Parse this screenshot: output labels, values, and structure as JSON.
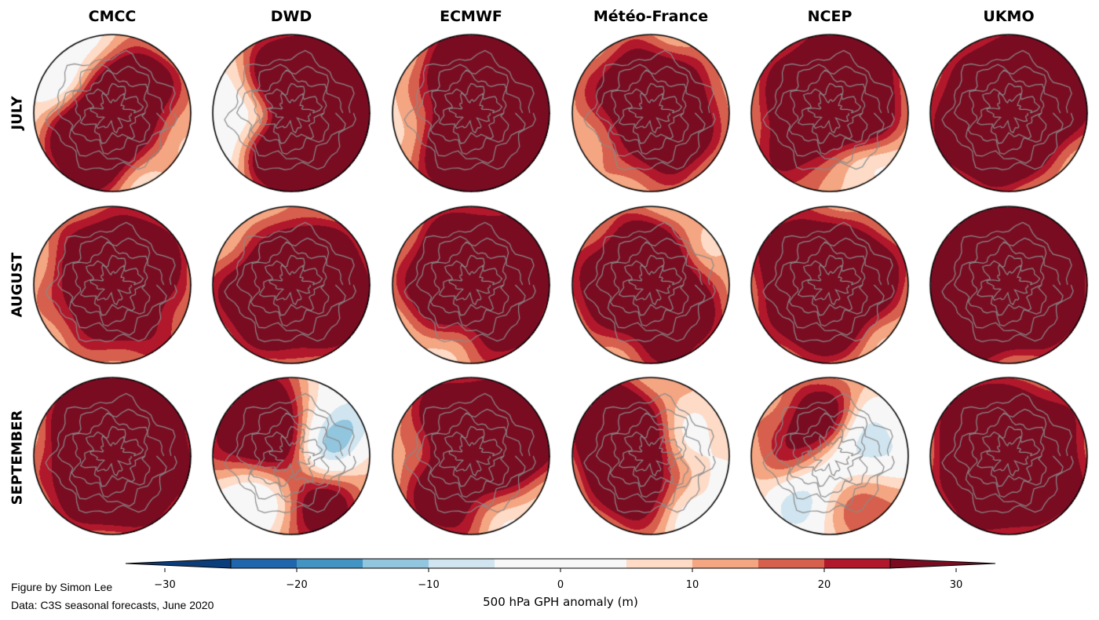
{
  "models": [
    "CMCC",
    "DWD",
    "ECMWF",
    "Météo-France",
    "NCEP",
    "UKMO"
  ],
  "months": [
    "JULY",
    "AUGUST",
    "SEPTEMBER"
  ],
  "colorbar": {
    "label": "500 hPa GPH anomaly (m)",
    "ticks": [
      -30,
      -20,
      -10,
      0,
      10,
      20,
      30
    ],
    "tick_labels": [
      "−30",
      "−20",
      "−10",
      "0",
      "10",
      "20",
      "30"
    ],
    "range": [
      -30,
      30
    ],
    "levels": [
      -25,
      -20,
      -15,
      -10,
      -5,
      5,
      10,
      15,
      20,
      25
    ],
    "colors": [
      "#0b3d7a",
      "#2166ac",
      "#4393c3",
      "#92c5de",
      "#d1e5f0",
      "#f7f7f7",
      "#fddbc7",
      "#f4a582",
      "#d6604d",
      "#b2182b",
      "#7a0c22"
    ],
    "extend": "both"
  },
  "credits": {
    "line1": "Figure by Simon Lee",
    "line2": "Data: C3S seasonal forecasts, June 2020"
  },
  "maps": [
    [
      [
        [
          -12,
          -25,
          10
        ],
        [
          22,
          -45,
          10
        ],
        [
          25,
          0,
          16
        ],
        [
          35,
          120,
          14
        ],
        [
          -8,
          170,
          16
        ],
        [
          -10,
          -130,
          15
        ],
        [
          28,
          150,
          12
        ],
        [
          -5,
          60,
          18
        ],
        [
          20,
          -80,
          12
        ]
      ],
      [
        [
          40,
          -30,
          18
        ],
        [
          35,
          60,
          16
        ],
        [
          -25,
          165,
          18
        ],
        [
          30,
          120,
          12
        ],
        [
          25,
          -110,
          14
        ],
        [
          15,
          0,
          18
        ]
      ],
      [
        [
          30,
          -40,
          20
        ],
        [
          28,
          55,
          18
        ],
        [
          -10,
          170,
          14
        ],
        [
          22,
          120,
          14
        ],
        [
          25,
          -100,
          16
        ],
        [
          20,
          15,
          18
        ]
      ],
      [
        [
          22,
          -35,
          14
        ],
        [
          20,
          -110,
          12
        ],
        [
          -12,
          170,
          14
        ],
        [
          15,
          100,
          16
        ],
        [
          18,
          40,
          12
        ],
        [
          22,
          -175,
          14
        ]
      ],
      [
        [
          38,
          -60,
          14
        ],
        [
          26,
          15,
          12
        ],
        [
          -12,
          60,
          10
        ],
        [
          32,
          -150,
          14
        ],
        [
          18,
          130,
          16
        ],
        [
          16,
          -100,
          16
        ]
      ],
      [
        [
          28,
          -40,
          18
        ],
        [
          25,
          100,
          14
        ],
        [
          25,
          -100,
          14
        ],
        [
          30,
          170,
          16
        ],
        [
          22,
          0,
          18
        ],
        [
          -5,
          45,
          12
        ]
      ]
    ],
    [
      [
        [
          26,
          -45,
          12
        ],
        [
          12,
          60,
          16
        ],
        [
          16,
          -120,
          16
        ],
        [
          20,
          140,
          14
        ],
        [
          -4,
          45,
          12
        ],
        [
          20,
          0,
          18
        ]
      ],
      [
        [
          26,
          -20,
          16
        ],
        [
          28,
          30,
          14
        ],
        [
          28,
          165,
          16
        ],
        [
          -8,
          -150,
          14
        ],
        [
          20,
          -80,
          14
        ],
        [
          12,
          100,
          18
        ]
      ],
      [
        [
          34,
          -30,
          16
        ],
        [
          20,
          60,
          14
        ],
        [
          -12,
          100,
          14
        ],
        [
          22,
          -110,
          14
        ],
        [
          25,
          165,
          14
        ],
        [
          20,
          0,
          18
        ]
      ],
      [
        [
          -6,
          -30,
          14
        ],
        [
          28,
          -100,
          12
        ],
        [
          30,
          170,
          16
        ],
        [
          20,
          0,
          14
        ],
        [
          22,
          60,
          18
        ],
        [
          -4,
          120,
          12
        ]
      ],
      [
        [
          22,
          -30,
          14
        ],
        [
          -5,
          60,
          12
        ],
        [
          22,
          -130,
          14
        ],
        [
          28,
          100,
          14
        ],
        [
          20,
          170,
          16
        ],
        [
          16,
          0,
          18
        ]
      ],
      [
        [
          36,
          -40,
          16
        ],
        [
          34,
          -130,
          16
        ],
        [
          30,
          130,
          14
        ],
        [
          35,
          40,
          14
        ],
        [
          -6,
          100,
          12
        ],
        [
          24,
          175,
          16
        ]
      ]
    ],
    [
      [
        [
          36,
          -50,
          16
        ],
        [
          34,
          25,
          16
        ],
        [
          -15,
          -5,
          14
        ],
        [
          34,
          -120,
          14
        ],
        [
          32,
          150,
          16
        ],
        [
          20,
          90,
          14
        ],
        [
          -10,
          -160,
          14
        ]
      ],
      [
        [
          -28,
          -40,
          16
        ],
        [
          -14,
          0,
          14
        ],
        [
          -25,
          130,
          14
        ],
        [
          34,
          -130,
          16
        ],
        [
          30,
          60,
          16
        ],
        [
          14,
          170,
          16
        ],
        [
          20,
          -80,
          14
        ]
      ],
      [
        [
          34,
          -40,
          18
        ],
        [
          28,
          120,
          16
        ],
        [
          -14,
          60,
          14
        ],
        [
          22,
          -120,
          14
        ],
        [
          20,
          0,
          16
        ],
        [
          -5,
          170,
          12
        ]
      ],
      [
        [
          -15,
          -5,
          14
        ],
        [
          -18,
          60,
          14
        ],
        [
          30,
          70,
          16
        ],
        [
          26,
          -130,
          14
        ],
        [
          24,
          -170,
          14
        ],
        [
          14,
          120,
          14
        ]
      ],
      [
        [
          -22,
          -20,
          14
        ],
        [
          -26,
          120,
          14
        ],
        [
          28,
          -100,
          14
        ],
        [
          20,
          60,
          14
        ],
        [
          15,
          170,
          16
        ],
        [
          -6,
          0,
          16
        ]
      ],
      [
        [
          30,
          -40,
          16
        ],
        [
          30,
          40,
          16
        ],
        [
          28,
          -130,
          14
        ],
        [
          26,
          120,
          14
        ],
        [
          -12,
          -10,
          14
        ],
        [
          20,
          170,
          14
        ]
      ]
    ]
  ]
}
